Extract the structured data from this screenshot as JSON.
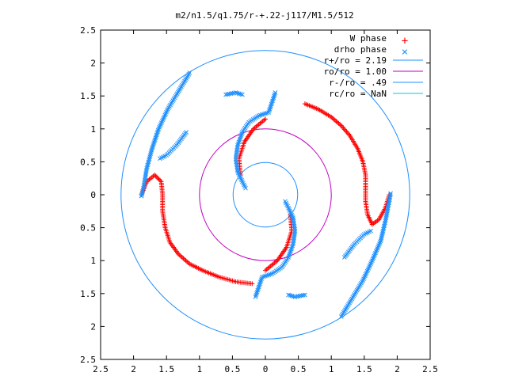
{
  "chart_data": {
    "type": "scatter",
    "title": "m2/n1.5/q1.75/r-+.22-j117/M1.5/512",
    "xlim": [
      -2.5,
      2.5
    ],
    "ylim": [
      -2.5,
      2.5
    ],
    "ticks": [
      -2.5,
      -2,
      -1.5,
      -1,
      -0.5,
      0,
      0.5,
      1,
      1.5,
      2,
      2.5
    ],
    "tick_labels": [
      "2.5",
      "2",
      "1.5",
      "1",
      "0.5",
      "0",
      "0.5",
      "1",
      "1.5",
      "2",
      "2.5"
    ],
    "grid": false,
    "legend_position": "top-right",
    "series": [
      {
        "name": "W phase",
        "marker": "+",
        "color": "#ff0000",
        "arms": [
          [
            [
              0.6,
              1.38
            ],
            [
              0.8,
              1.3
            ],
            [
              1.0,
              1.18
            ],
            [
              1.15,
              1.05
            ],
            [
              1.28,
              0.9
            ],
            [
              1.4,
              0.7
            ],
            [
              1.48,
              0.5
            ],
            [
              1.52,
              0.3
            ],
            [
              1.52,
              0.1
            ],
            [
              1.52,
              -0.1
            ],
            [
              1.55,
              -0.3
            ],
            [
              1.62,
              -0.45
            ],
            [
              1.72,
              -0.38
            ],
            [
              1.82,
              -0.2
            ],
            [
              1.88,
              0.0
            ]
          ],
          [
            [
              -0.2,
              -1.35
            ],
            [
              -0.45,
              -1.32
            ],
            [
              -0.7,
              -1.25
            ],
            [
              -0.95,
              -1.15
            ],
            [
              -1.15,
              -1.05
            ],
            [
              -1.32,
              -0.9
            ],
            [
              -1.45,
              -0.72
            ],
            [
              -1.52,
              -0.5
            ],
            [
              -1.56,
              -0.25
            ],
            [
              -1.56,
              0.0
            ],
            [
              -1.58,
              0.2
            ],
            [
              -1.68,
              0.3
            ],
            [
              -1.8,
              0.2
            ],
            [
              -1.88,
              0.0
            ]
          ],
          [
            [
              0.0,
              1.15
            ],
            [
              -0.18,
              1.0
            ],
            [
              -0.32,
              0.8
            ],
            [
              -0.4,
              0.55
            ],
            [
              -0.38,
              0.3
            ]
          ],
          [
            [
              0.0,
              -1.15
            ],
            [
              0.18,
              -1.0
            ],
            [
              0.32,
              -0.8
            ],
            [
              0.4,
              -0.55
            ],
            [
              0.38,
              -0.3
            ]
          ]
        ]
      },
      {
        "name": "drho phase",
        "marker": "x",
        "color": "#1e90ff",
        "arms": [
          [
            [
              -0.15,
              -1.55
            ],
            [
              -0.1,
              -1.4
            ],
            [
              -0.05,
              -1.25
            ],
            [
              0.1,
              -1.2
            ],
            [
              0.25,
              -1.1
            ],
            [
              0.35,
              -0.95
            ],
            [
              0.42,
              -0.75
            ],
            [
              0.45,
              -0.55
            ],
            [
              0.42,
              -0.35
            ],
            [
              0.35,
              -0.2
            ],
            [
              0.3,
              -0.1
            ]
          ],
          [
            [
              0.15,
              1.55
            ],
            [
              0.1,
              1.4
            ],
            [
              0.05,
              1.25
            ],
            [
              -0.1,
              1.2
            ],
            [
              -0.25,
              1.1
            ],
            [
              -0.35,
              0.95
            ],
            [
              -0.42,
              0.75
            ],
            [
              -0.45,
              0.55
            ],
            [
              -0.42,
              0.35
            ],
            [
              -0.35,
              0.2
            ],
            [
              -0.3,
              0.1
            ]
          ],
          [
            [
              1.15,
              -1.85
            ],
            [
              1.3,
              -1.6
            ],
            [
              1.48,
              -1.3
            ],
            [
              1.62,
              -1.0
            ],
            [
              1.75,
              -0.7
            ],
            [
              1.82,
              -0.4
            ],
            [
              1.88,
              -0.1
            ],
            [
              1.9,
              0.02
            ]
          ],
          [
            [
              -1.15,
              1.85
            ],
            [
              -1.3,
              1.6
            ],
            [
              -1.48,
              1.3
            ],
            [
              -1.62,
              1.0
            ],
            [
              -1.72,
              0.7
            ],
            [
              -1.8,
              0.4
            ],
            [
              -1.85,
              0.1
            ],
            [
              -1.88,
              -0.02
            ]
          ],
          [
            [
              -0.6,
              1.52
            ],
            [
              -0.45,
              1.55
            ],
            [
              -0.35,
              1.52
            ]
          ],
          [
            [
              0.6,
              -1.52
            ],
            [
              0.45,
              -1.55
            ],
            [
              0.35,
              -1.52
            ]
          ],
          [
            [
              -1.2,
              0.95
            ],
            [
              -1.35,
              0.75
            ],
            [
              -1.5,
              0.6
            ],
            [
              -1.6,
              0.55
            ]
          ],
          [
            [
              1.2,
              -0.95
            ],
            [
              1.35,
              -0.75
            ],
            [
              1.5,
              -0.6
            ],
            [
              1.6,
              -0.55
            ]
          ]
        ]
      }
    ],
    "circles": [
      {
        "name": "r+/ro = 2.19",
        "r": 2.19,
        "color": "#1e90ff"
      },
      {
        "name": "ro/ro = 1.00",
        "r": 1.0,
        "color": "#c000c0"
      },
      {
        "name": "r-/ro = .49",
        "r": 0.49,
        "color": "#1e90ff"
      },
      {
        "name": "rc/ro = NaN",
        "r": null,
        "color": "#00ced1"
      }
    ]
  }
}
